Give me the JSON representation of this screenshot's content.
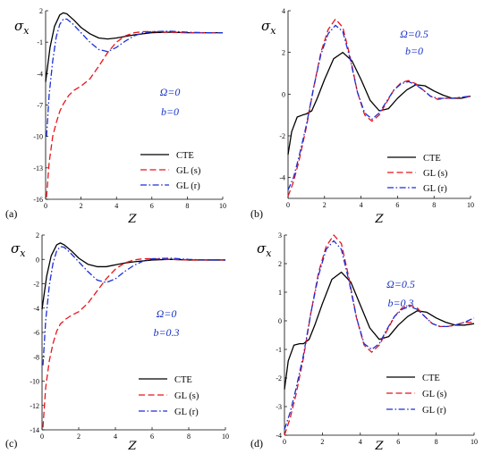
{
  "chart_data": [
    {
      "type": "line",
      "panel_label": "(a)",
      "ylabel": "σ",
      "ylabel_sub": "x",
      "xlabel": "Z",
      "xlim": [
        0,
        10
      ],
      "ylim": [
        -16,
        2
      ],
      "xticks": [
        0,
        2,
        4,
        6,
        8,
        10
      ],
      "yticks": [
        -16,
        -13,
        -10,
        -7,
        -4,
        -1,
        2
      ],
      "annotations": [
        "Ω=0",
        "b=0"
      ],
      "legend": "lower-right",
      "series": [
        {
          "name": "CTE",
          "color": "#000000",
          "dash": "solid",
          "x": [
            0,
            0.25,
            0.5,
            0.8,
            1.0,
            1.2,
            1.6,
            2.0,
            2.5,
            3.0,
            3.5,
            4.0,
            4.5,
            5.0,
            6.0,
            7.0,
            8.0,
            9.0,
            10.0
          ],
          "y": [
            -4.8,
            -1.5,
            0.5,
            1.6,
            1.8,
            1.7,
            1.1,
            0.4,
            -0.2,
            -0.6,
            -0.7,
            -0.6,
            -0.45,
            -0.3,
            -0.1,
            -0.05,
            -0.1,
            -0.1,
            -0.1
          ]
        },
        {
          "name": "GL (s)",
          "color": "#e8141b",
          "dash": "dashed",
          "x": [
            0.05,
            0.2,
            0.4,
            0.6,
            0.8,
            1.0,
            1.3,
            1.6,
            2.0,
            2.5,
            3.0,
            3.5,
            4.0,
            4.5,
            5.0,
            5.5,
            6.0,
            7.0,
            8.0,
            9.0,
            10.0
          ],
          "y": [
            -15.8,
            -12.5,
            -10.0,
            -8.7,
            -7.6,
            -6.9,
            -6.1,
            -5.6,
            -5.2,
            -4.5,
            -3.3,
            -2.0,
            -1.0,
            -0.4,
            -0.1,
            0.0,
            0.0,
            -0.05,
            -0.1,
            -0.1,
            -0.1
          ]
        },
        {
          "name": "GL (r)",
          "color": "#1a2fd6",
          "dash": "dashdot",
          "x": [
            0.05,
            0.2,
            0.4,
            0.6,
            0.8,
            1.0,
            1.2,
            1.5,
            2.0,
            2.5,
            3.0,
            3.5,
            4.0,
            4.5,
            5.0,
            5.5,
            6.0,
            7.0,
            8.0,
            9.0,
            10.0
          ],
          "y": [
            -10.0,
            -6.0,
            -2.8,
            -0.5,
            0.7,
            1.2,
            1.2,
            0.8,
            -0.1,
            -1.0,
            -1.7,
            -1.9,
            -1.5,
            -0.9,
            -0.4,
            -0.1,
            0.0,
            0.05,
            -0.05,
            -0.1,
            -0.1
          ]
        }
      ]
    },
    {
      "type": "line",
      "panel_label": "(b)",
      "ylabel": "σ",
      "ylabel_sub": "x",
      "xlabel": "Z",
      "xlim": [
        0,
        10
      ],
      "ylim": [
        -5,
        4
      ],
      "xticks": [
        0,
        2,
        4,
        6,
        8,
        10
      ],
      "yticks": [
        -4,
        -2,
        0,
        2,
        4
      ],
      "annotations": [
        "Ω=0.5",
        "b=0"
      ],
      "legend": "lower-right",
      "series": [
        {
          "name": "CTE",
          "color": "#000000",
          "dash": "solid",
          "x": [
            0,
            0.2,
            0.5,
            0.8,
            1.0,
            1.3,
            1.6,
            2.0,
            2.5,
            3.0,
            3.5,
            4.0,
            4.5,
            5.0,
            5.5,
            6.0,
            6.5,
            7.0,
            7.5,
            8.0,
            8.5,
            9.0,
            9.5,
            10.0
          ],
          "y": [
            -2.9,
            -1.8,
            -1.1,
            -1.0,
            -0.95,
            -0.8,
            -0.2,
            0.7,
            1.7,
            2.0,
            1.6,
            0.7,
            -0.3,
            -0.8,
            -0.7,
            -0.2,
            0.2,
            0.45,
            0.4,
            0.15,
            -0.05,
            -0.2,
            -0.2,
            -0.1
          ]
        },
        {
          "name": "GL (s)",
          "color": "#e8141b",
          "dash": "dashed",
          "x": [
            0,
            0.3,
            0.6,
            1.0,
            1.4,
            1.8,
            2.2,
            2.6,
            3.0,
            3.4,
            3.8,
            4.2,
            4.6,
            5.0,
            5.4,
            5.8,
            6.2,
            6.6,
            7.0,
            7.4,
            7.8,
            8.2,
            8.6,
            9.0,
            9.5,
            10.0
          ],
          "y": [
            -4.9,
            -4.2,
            -3.2,
            -1.6,
            0.3,
            2.0,
            3.1,
            3.6,
            3.2,
            1.8,
            0.1,
            -1.0,
            -1.3,
            -1.0,
            -0.4,
            0.2,
            0.55,
            0.65,
            0.5,
            0.2,
            -0.1,
            -0.25,
            -0.2,
            -0.2,
            -0.15,
            -0.1
          ]
        },
        {
          "name": "GL (r)",
          "color": "#1a2fd6",
          "dash": "dashdot",
          "x": [
            0,
            0.3,
            0.6,
            1.0,
            1.4,
            1.8,
            2.2,
            2.6,
            3.0,
            3.4,
            3.8,
            4.2,
            4.6,
            5.0,
            5.4,
            5.8,
            6.2,
            6.6,
            7.0,
            7.4,
            7.8,
            8.2,
            8.6,
            9.0,
            9.5,
            10.0
          ],
          "y": [
            -4.6,
            -4.0,
            -3.0,
            -1.5,
            0.3,
            1.9,
            2.9,
            3.3,
            3.0,
            1.7,
            0.1,
            -0.9,
            -1.2,
            -0.9,
            -0.35,
            0.2,
            0.5,
            0.6,
            0.45,
            0.2,
            -0.1,
            -0.2,
            -0.2,
            -0.2,
            -0.15,
            -0.1
          ]
        }
      ]
    },
    {
      "type": "line",
      "panel_label": "(c)",
      "ylabel": "σ",
      "ylabel_sub": "x",
      "xlabel": "Z",
      "xlim": [
        0,
        10
      ],
      "ylim": [
        -14,
        2
      ],
      "xticks": [
        0,
        2,
        4,
        6,
        8,
        10
      ],
      "yticks": [
        -14,
        -12,
        -10,
        -8,
        -6,
        -4,
        -2,
        0,
        2
      ],
      "annotations": [
        "Ω=0",
        "b=0.3"
      ],
      "legend": "lower-right",
      "series": [
        {
          "name": "CTE",
          "color": "#000000",
          "dash": "solid",
          "x": [
            0,
            0.25,
            0.5,
            0.8,
            1.0,
            1.2,
            1.6,
            2.0,
            2.5,
            3.0,
            3.5,
            4.0,
            4.5,
            5.0,
            6.0,
            7.0,
            8.0,
            9.0,
            10.0
          ],
          "y": [
            -4.1,
            -1.4,
            0.3,
            1.2,
            1.35,
            1.2,
            0.7,
            0.1,
            -0.4,
            -0.6,
            -0.6,
            -0.45,
            -0.3,
            -0.2,
            -0.05,
            0.0,
            -0.05,
            -0.05,
            -0.05
          ]
        },
        {
          "name": "GL (s)",
          "color": "#e8141b",
          "dash": "dashed",
          "x": [
            0.05,
            0.2,
            0.4,
            0.6,
            0.8,
            1.0,
            1.3,
            1.6,
            2.0,
            2.5,
            3.0,
            3.5,
            4.0,
            4.5,
            5.0,
            5.5,
            6.0,
            7.0,
            8.0,
            9.0,
            10.0
          ],
          "y": [
            -13.8,
            -10.5,
            -8.3,
            -6.9,
            -5.9,
            -5.3,
            -4.9,
            -4.6,
            -4.3,
            -3.6,
            -2.6,
            -1.6,
            -0.8,
            -0.3,
            -0.05,
            0.05,
            0.05,
            0.0,
            -0.05,
            -0.05,
            -0.05
          ]
        },
        {
          "name": "GL (r)",
          "color": "#1a2fd6",
          "dash": "dashdot",
          "x": [
            0.05,
            0.2,
            0.4,
            0.6,
            0.8,
            1.0,
            1.2,
            1.5,
            2.0,
            2.5,
            3.0,
            3.5,
            4.0,
            4.5,
            5.0,
            5.5,
            6.0,
            7.0,
            8.0,
            9.0,
            10.0
          ],
          "y": [
            -8.7,
            -5.0,
            -2.1,
            -0.3,
            0.7,
            1.05,
            1.0,
            0.6,
            -0.2,
            -1.0,
            -1.7,
            -1.9,
            -1.6,
            -1.0,
            -0.5,
            -0.15,
            0.05,
            0.1,
            0.0,
            -0.05,
            -0.05
          ]
        }
      ]
    },
    {
      "type": "line",
      "panel_label": "(d)",
      "ylabel": "σ",
      "ylabel_sub": "x",
      "xlabel": "Z",
      "xlim": [
        0,
        10
      ],
      "ylim": [
        -4,
        3
      ],
      "xticks": [
        0,
        2,
        4,
        6,
        8,
        10
      ],
      "yticks": [
        -4,
        -3,
        -2,
        -1,
        0,
        1,
        2,
        3
      ],
      "annotations": [
        "Ω=0.5",
        "b=0.3"
      ],
      "legend": "lower-right",
      "series": [
        {
          "name": "CTE",
          "color": "#000000",
          "dash": "solid",
          "x": [
            0,
            0.2,
            0.5,
            0.8,
            1.0,
            1.3,
            1.6,
            2.0,
            2.5,
            3.0,
            3.5,
            4.0,
            4.5,
            5.0,
            5.5,
            6.0,
            6.5,
            7.0,
            7.5,
            8.0,
            8.5,
            9.0,
            9.5,
            10.0
          ],
          "y": [
            -2.4,
            -1.4,
            -0.85,
            -0.8,
            -0.8,
            -0.65,
            -0.15,
            0.6,
            1.45,
            1.7,
            1.35,
            0.55,
            -0.25,
            -0.65,
            -0.55,
            -0.15,
            0.15,
            0.35,
            0.3,
            0.1,
            -0.05,
            -0.15,
            -0.15,
            -0.1
          ]
        },
        {
          "name": "GL (s)",
          "color": "#e8141b",
          "dash": "dashed",
          "x": [
            0,
            0.3,
            0.6,
            1.0,
            1.4,
            1.8,
            2.2,
            2.6,
            3.0,
            3.4,
            3.8,
            4.2,
            4.6,
            5.0,
            5.4,
            5.8,
            6.2,
            6.6,
            7.0,
            7.4,
            7.8,
            8.2,
            8.6,
            9.0,
            9.5,
            10.0
          ],
          "y": [
            -4.0,
            -3.4,
            -2.6,
            -1.3,
            0.3,
            1.7,
            2.6,
            3.0,
            2.7,
            1.5,
            0.1,
            -0.85,
            -1.1,
            -0.85,
            -0.35,
            0.15,
            0.45,
            0.55,
            0.45,
            0.15,
            -0.1,
            -0.2,
            -0.2,
            -0.15,
            -0.05,
            -0.05
          ]
        },
        {
          "name": "GL (r)",
          "color": "#1a2fd6",
          "dash": "dashdot",
          "x": [
            0,
            0.3,
            0.6,
            1.0,
            1.4,
            1.8,
            2.2,
            2.6,
            3.0,
            3.4,
            3.8,
            4.2,
            4.6,
            5.0,
            5.4,
            5.8,
            6.2,
            6.6,
            7.0,
            7.4,
            7.8,
            8.2,
            8.6,
            9.0,
            9.5,
            10.0
          ],
          "y": [
            -3.8,
            -3.2,
            -2.4,
            -1.2,
            0.3,
            1.6,
            2.5,
            2.8,
            2.5,
            1.4,
            0.1,
            -0.8,
            -1.0,
            -0.8,
            -0.3,
            0.15,
            0.4,
            0.5,
            0.4,
            0.15,
            -0.1,
            -0.2,
            -0.2,
            -0.15,
            -0.05,
            0.1
          ]
        }
      ]
    }
  ]
}
